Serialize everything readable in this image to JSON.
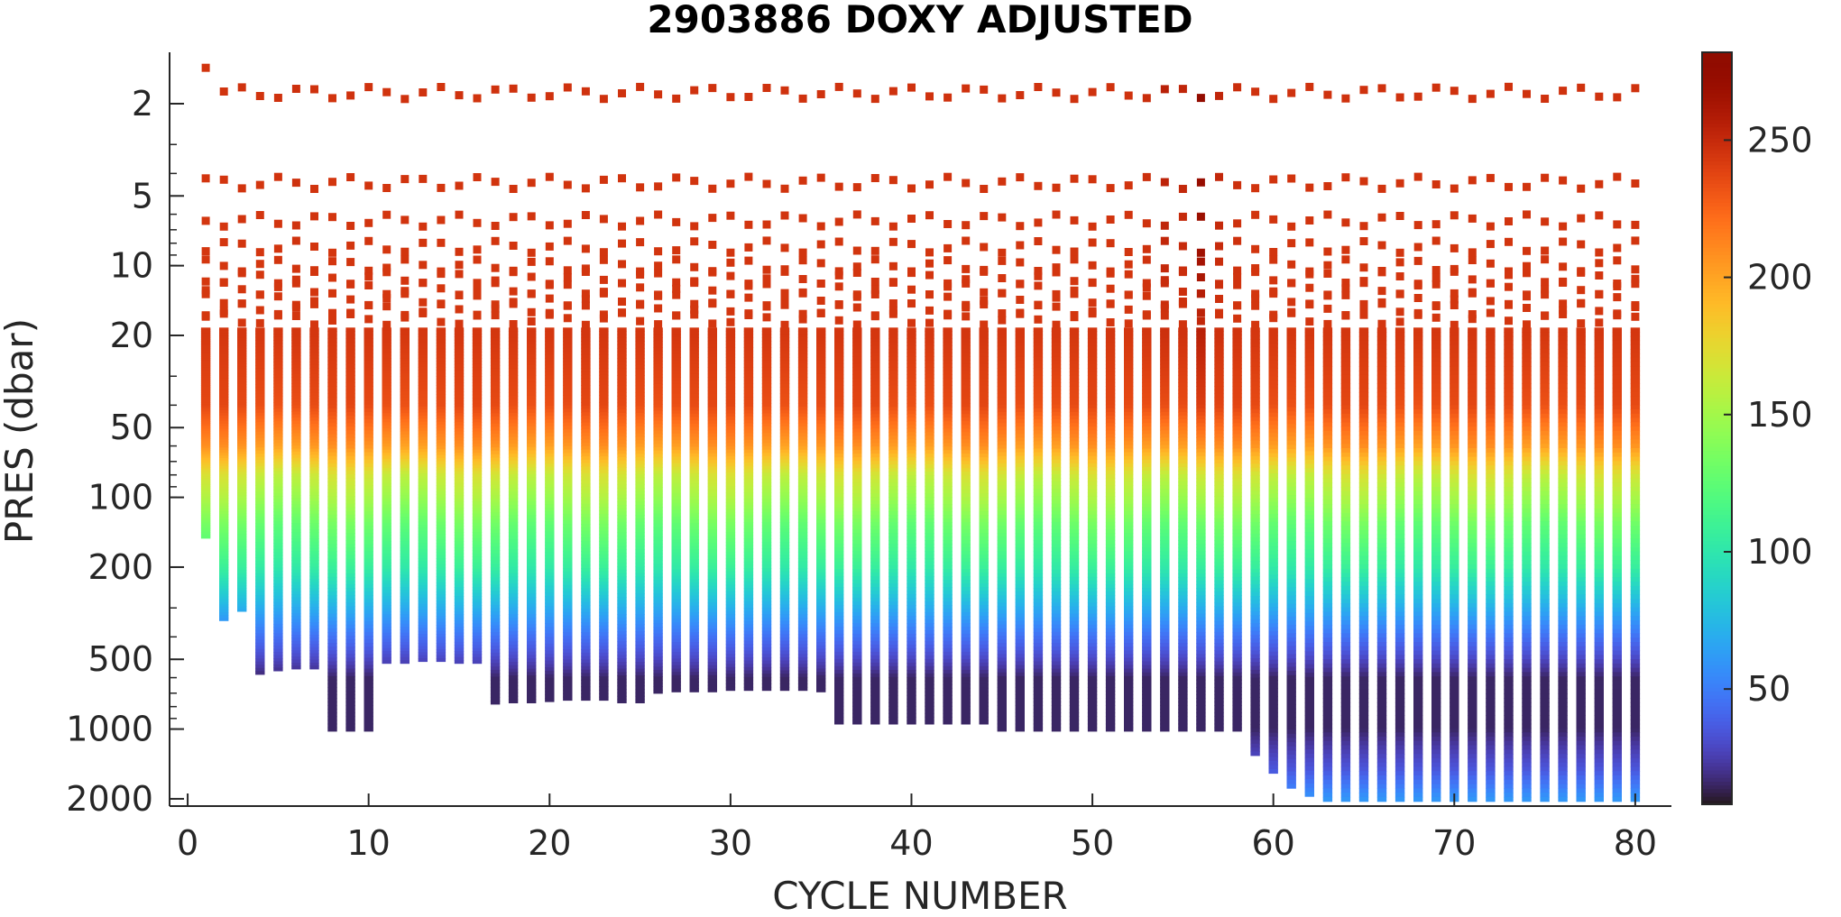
{
  "chart_data": {
    "type": "scatter",
    "title": "2903886  DOXY ADJUSTED",
    "xlabel": "CYCLE NUMBER",
    "ylabel": "PRES (dbar)",
    "xlim": [
      -1,
      82
    ],
    "ylim": [
      1.2,
      2150
    ],
    "y_scale": "log",
    "y_reversed": true,
    "x_ticks": [
      0,
      10,
      20,
      30,
      40,
      50,
      60,
      70,
      80
    ],
    "y_ticks": [
      2,
      5,
      10,
      20,
      50,
      100,
      200,
      500,
      1000,
      2000
    ],
    "grid": false,
    "colorbar": {
      "clim": [
        8,
        282
      ],
      "ticks": [
        50,
        100,
        150,
        200,
        250
      ],
      "colormap": "turbo"
    },
    "cycles": [
      1,
      2,
      3,
      4,
      5,
      6,
      7,
      8,
      9,
      10,
      11,
      12,
      13,
      14,
      15,
      16,
      17,
      18,
      19,
      20,
      21,
      22,
      23,
      24,
      25,
      26,
      27,
      28,
      29,
      30,
      31,
      32,
      33,
      34,
      35,
      36,
      37,
      38,
      39,
      40,
      41,
      42,
      43,
      44,
      45,
      46,
      47,
      48,
      49,
      50,
      51,
      52,
      53,
      54,
      55,
      56,
      57,
      58,
      59,
      60,
      61,
      62,
      63,
      64,
      65,
      66,
      67,
      68,
      69,
      70,
      71,
      72,
      73,
      74,
      75,
      76,
      77,
      78,
      79,
      80
    ],
    "max_pressure": [
      150,
      340,
      310,
      580,
      560,
      550,
      550,
      1020,
      1020,
      1020,
      520,
      520,
      510,
      510,
      520,
      520,
      780,
      770,
      770,
      760,
      750,
      750,
      750,
      770,
      770,
      700,
      690,
      690,
      690,
      680,
      680,
      680,
      680,
      680,
      690,
      950,
      950,
      950,
      950,
      950,
      950,
      950,
      950,
      950,
      1020,
      1020,
      1020,
      1020,
      1020,
      1020,
      1020,
      1020,
      1020,
      1020,
      1020,
      1020,
      1020,
      1020,
      1300,
      1550,
      1800,
      1950,
      2050,
      2050,
      2050,
      2050,
      2050,
      2050,
      2050,
      2050,
      2050,
      2050,
      2050,
      2050,
      2050,
      2050,
      2050,
      2050,
      2050,
      2050
    ],
    "surface_doxy": [
      245,
      245,
      246,
      245,
      246,
      247,
      246,
      245,
      246,
      246,
      245,
      246,
      246,
      245,
      246,
      245,
      246,
      246,
      246,
      246,
      246,
      246,
      246,
      246,
      246,
      246,
      246,
      246,
      246,
      246,
      246,
      246,
      246,
      246,
      246,
      246,
      246,
      246,
      246,
      246,
      246,
      246,
      246,
      246,
      246,
      246,
      246,
      246,
      246,
      246,
      246,
      246,
      248,
      255,
      252,
      275,
      252,
      248,
      246,
      246,
      246,
      246,
      246,
      246,
      246,
      246,
      246,
      246,
      246,
      246,
      246,
      246,
      246,
      246,
      246,
      246,
      246,
      246,
      246,
      246
    ],
    "oxygen_profile_reference": {
      "pressure": [
        2,
        20,
        40,
        60,
        80,
        100,
        130,
        200,
        300,
        400,
        600,
        1000,
        1500,
        2000
      ],
      "doxy": [
        246,
        244,
        235,
        205,
        165,
        150,
        130,
        105,
        70,
        45,
        15,
        15,
        35,
        60
      ]
    }
  }
}
